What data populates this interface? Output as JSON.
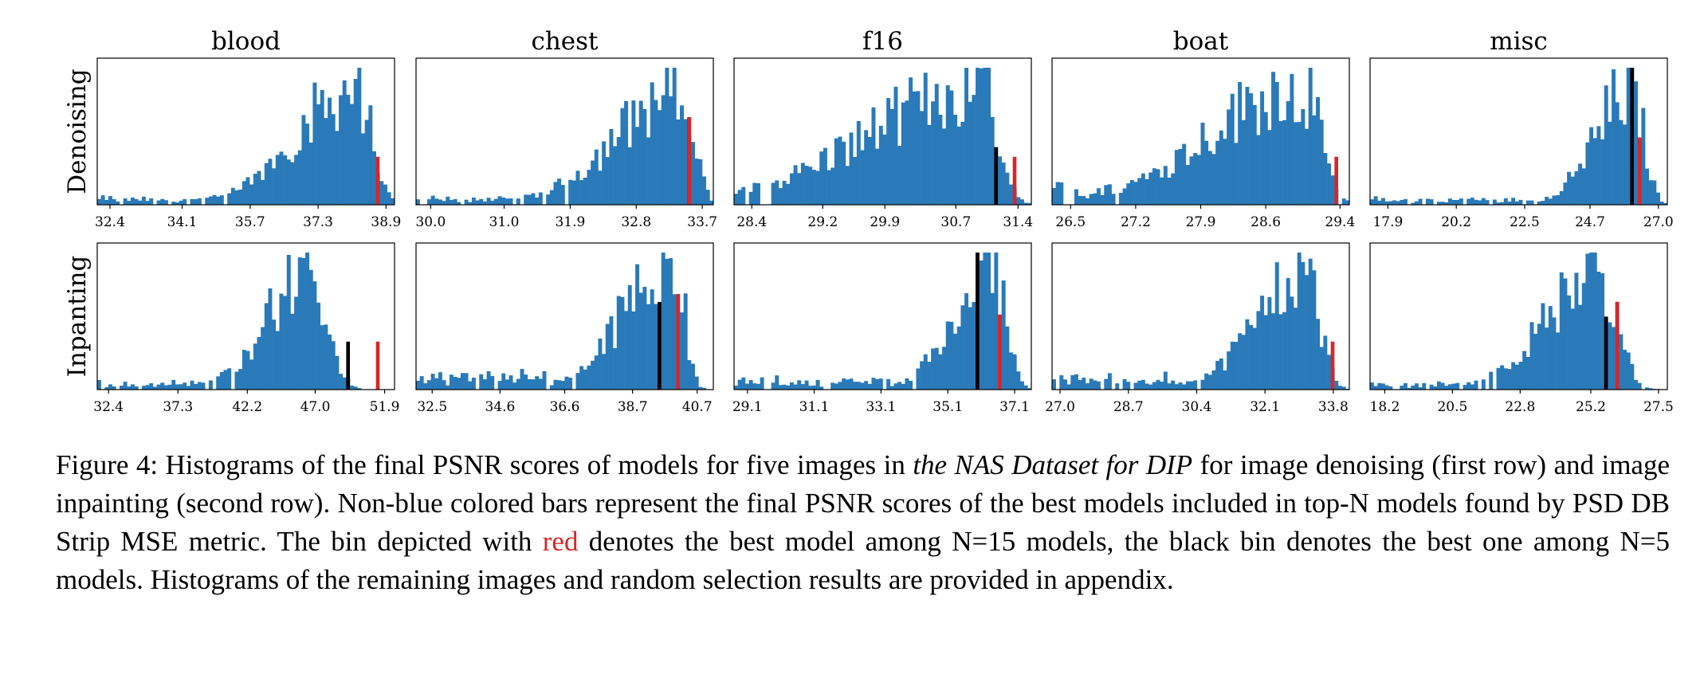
{
  "figure": {
    "row_labels": [
      "Denoising",
      "Inpanting"
    ],
    "column_titles": [
      "blood",
      "chest",
      "f16",
      "boat",
      "misc"
    ],
    "colors": {
      "bar": "#2a7ab9",
      "highlight_red": "#d62728",
      "highlight_black": "#000000"
    }
  },
  "chart_data": [
    {
      "type": "bar",
      "title": "blood",
      "row": "Denoising",
      "xlim": [
        32.1,
        39.1
      ],
      "xticks": [
        "32.4",
        "34.1",
        "35.7",
        "37.3",
        "38.9"
      ],
      "shape": {
        "peak": 38.2,
        "spread_left": 1.4,
        "spread_right": 0.35,
        "tail": 0.06
      },
      "red_bin": 38.75,
      "black_bin": null
    },
    {
      "type": "bar",
      "title": "chest",
      "row": "Denoising",
      "xlim": [
        29.8,
        33.85
      ],
      "xticks": [
        "30.0",
        "31.0",
        "31.9",
        "32.8",
        "33.7"
      ],
      "shape": {
        "peak": 33.45,
        "spread_left": 0.9,
        "spread_right": 0.15,
        "tail": 0.06
      },
      "red_bin": 33.5,
      "black_bin": 33.5
    },
    {
      "type": "bar",
      "title": "f16",
      "row": "Denoising",
      "xlim": [
        28.2,
        31.55
      ],
      "xticks": [
        "28.4",
        "29.2",
        "29.9",
        "30.7",
        "31.4"
      ],
      "shape": {
        "peak": 31.0,
        "spread_left": 1.3,
        "spread_right": 0.18,
        "tail": 0.1
      },
      "red_bin": 31.35,
      "black_bin": 31.15
    },
    {
      "type": "bar",
      "title": "boat",
      "row": "Denoising",
      "xlim": [
        26.3,
        29.5
      ],
      "xticks": [
        "26.5",
        "27.2",
        "27.9",
        "28.6",
        "29.4"
      ],
      "shape": {
        "peak": 29.0,
        "spread_left": 1.0,
        "spread_right": 0.18,
        "tail": 0.15
      },
      "red_bin": 29.38,
      "black_bin": null
    },
    {
      "type": "bar",
      "title": "misc",
      "row": "Denoising",
      "xlim": [
        17.3,
        27.3
      ],
      "xticks": [
        "17.9",
        "20.2",
        "22.5",
        "24.7",
        "27.0"
      ],
      "shape": {
        "peak": 26.1,
        "spread_left": 1.2,
        "spread_right": 0.4,
        "tail": 0.05
      },
      "red_bin": 26.3,
      "black_bin": 26.1
    },
    {
      "type": "bar",
      "title": "blood",
      "row": "Inpanting",
      "xlim": [
        31.6,
        52.6
      ],
      "xticks": [
        "32.4",
        "37.3",
        "42.2",
        "47.0",
        "51.9"
      ],
      "shape": {
        "peak": 46.6,
        "spread_left": 3.0,
        "spread_right": 1.2,
        "tail": 0.06
      },
      "red_bin": 51.3,
      "black_bin": 49.2
    },
    {
      "type": "bar",
      "title": "chest",
      "row": "Inpanting",
      "xlim": [
        32.0,
        41.2
      ],
      "xticks": [
        "32.5",
        "34.6",
        "36.6",
        "38.7",
        "40.7"
      ],
      "shape": {
        "peak": 40.0,
        "spread_left": 1.5,
        "spread_right": 0.3,
        "tail": 0.1
      },
      "red_bin": 40.15,
      "black_bin": 39.55
    },
    {
      "type": "bar",
      "title": "f16",
      "row": "Inpanting",
      "xlim": [
        28.7,
        37.6
      ],
      "xticks": [
        "29.1",
        "31.1",
        "33.1",
        "35.1",
        "37.1"
      ],
      "shape": {
        "peak": 36.5,
        "spread_left": 1.2,
        "spread_right": 0.35,
        "tail": 0.08
      },
      "red_bin": 36.65,
      "black_bin": 36.0
    },
    {
      "type": "bar",
      "title": "boat",
      "row": "Inpanting",
      "xlim": [
        26.8,
        34.2
      ],
      "xticks": [
        "27.0",
        "28.7",
        "30.4",
        "32.1",
        "33.8"
      ],
      "shape": {
        "peak": 33.1,
        "spread_left": 1.2,
        "spread_right": 0.35,
        "tail": 0.1
      },
      "red_bin": 33.75,
      "black_bin": null
    },
    {
      "type": "bar",
      "title": "misc",
      "row": "Inpanting",
      "xlim": [
        17.7,
        27.8
      ],
      "xticks": [
        "18.2",
        "20.5",
        "22.8",
        "25.2",
        "27.5"
      ],
      "shape": {
        "peak": 25.5,
        "spread_left": 1.8,
        "spread_right": 0.6,
        "tail": 0.05
      },
      "red_bin": 26.1,
      "black_bin": 25.7
    }
  ],
  "caption": {
    "prefix": "Figure 4: Histograms of the final PSNR scores of models for five images in ",
    "italic": "the NAS Dataset for DIP",
    "middle": " for image denoising (first row) and image inpainting (second row). Non-blue colored bars represent the final PSNR scores of the best models included in top-N models found by PSD DB Strip MSE metric. The bin depicted with ",
    "red_word": "red",
    "suffix": " denotes the best model among N=15 models, the black bin denotes the best one among N=5 models. Histograms of the remaining images and random selection results are provided in appendix."
  }
}
